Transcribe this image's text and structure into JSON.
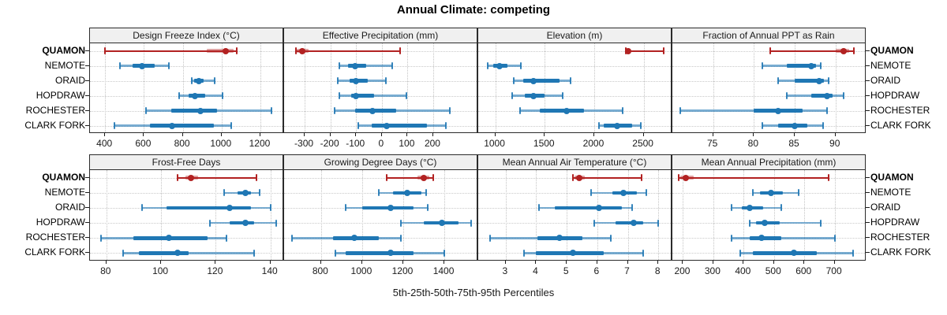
{
  "title": "Annual Climate: competing",
  "caption": "5th-25th-50th-75th-95th Percentiles",
  "percentiles": [
    "5th",
    "25th",
    "50th",
    "75th",
    "95th"
  ],
  "stations": [
    "QUAMON",
    "NEMOTE",
    "ORAID",
    "HOPDRAW",
    "ROCHESTER",
    "CLARK FORK"
  ],
  "highlight_station": "QUAMON",
  "colors": {
    "highlight": "#b22222",
    "normal": "#1f77b4",
    "grid": "#c4c4c4",
    "panel_header_bg": "#f0f0f0",
    "border": "#2b2b2b"
  },
  "chart_data": [
    {
      "type": "interval-dot",
      "title": "Design Freeze Index (°C)",
      "row": 0,
      "col": 0,
      "xlim": [
        322,
        1322
      ],
      "ticks": [
        400,
        600,
        800,
        1000,
        1200
      ],
      "values": [
        [
          400,
          925,
          1020,
          1060,
          1080
        ],
        [
          475,
          540,
          590,
          655,
          730
        ],
        [
          845,
          858,
          882,
          908,
          965
        ],
        [
          780,
          830,
          862,
          915,
          1005
        ],
        [
          612,
          740,
          890,
          975,
          1255
        ],
        [
          450,
          630,
          745,
          960,
          1050
        ]
      ]
    },
    {
      "type": "interval-dot",
      "title": "Effective Precipitation (mm)",
      "row": 0,
      "col": 1,
      "xlim": [
        -380,
        375
      ],
      "ticks": [
        -300,
        -200,
        -100,
        0,
        100,
        200
      ],
      "values": [
        [
          -335,
          -330,
          -310,
          -285,
          70
        ],
        [
          -165,
          -130,
          -105,
          -60,
          40
        ],
        [
          -170,
          -125,
          -100,
          -55,
          15
        ],
        [
          -165,
          -120,
          -100,
          -30,
          95
        ],
        [
          -185,
          -105,
          -35,
          55,
          265
        ],
        [
          -90,
          -40,
          20,
          175,
          250
        ]
      ]
    },
    {
      "type": "interval-dot",
      "title": "Elevation (m)",
      "row": 0,
      "col": 2,
      "xlim": [
        828,
        2790
      ],
      "ticks": [
        1000,
        1500,
        2000,
        2500
      ],
      "values": [
        [
          2320,
          2330,
          2345,
          2365,
          2700
        ],
        [
          920,
          980,
          1040,
          1120,
          1260
        ],
        [
          1190,
          1280,
          1390,
          1650,
          1760
        ],
        [
          1170,
          1300,
          1390,
          1500,
          1680
        ],
        [
          1250,
          1450,
          1720,
          1900,
          2290
        ],
        [
          2050,
          2100,
          2230,
          2380,
          2470
        ]
      ]
    },
    {
      "type": "interval-dot",
      "title": "Fraction of Annual PPT as Rain",
      "row": 0,
      "col": 3,
      "xlim": [
        70,
        93.8
      ],
      "ticks": [
        75,
        80,
        85,
        90
      ],
      "values": [
        [
          82,
          90,
          91,
          91.7,
          92.3
        ],
        [
          81,
          84,
          87,
          87.6,
          88.2
        ],
        [
          83,
          85,
          88,
          88.6,
          89.2
        ],
        [
          84,
          87,
          89,
          89.6,
          91
        ],
        [
          71,
          80,
          83,
          86,
          89
        ],
        [
          81,
          83,
          85,
          86.5,
          88.5
        ]
      ]
    },
    {
      "type": "interval-dot",
      "title": "Frost-Free Days",
      "row": 1,
      "col": 0,
      "xlim": [
        74,
        145
      ],
      "ticks": [
        80,
        100,
        120,
        140
      ],
      "values": [
        [
          106,
          109,
          111,
          113.5,
          135
        ],
        [
          123,
          128,
          131,
          133,
          136
        ],
        [
          93,
          102,
          125,
          133,
          140
        ],
        [
          118,
          125,
          131,
          134,
          142
        ],
        [
          78,
          90,
          103,
          117,
          124
        ],
        [
          86,
          92,
          106,
          110,
          134
        ]
      ]
    },
    {
      "type": "interval-dot",
      "title": "Growing Degree Days (°C)",
      "row": 1,
      "col": 1,
      "xlim": [
        620,
        1565
      ],
      "ticks": [
        800,
        1000,
        1200,
        1400
      ],
      "values": [
        [
          1120,
          1270,
          1300,
          1325,
          1345
        ],
        [
          1080,
          1150,
          1220,
          1290,
          1310
        ],
        [
          920,
          1000,
          1140,
          1250,
          1320
        ],
        [
          1190,
          1300,
          1390,
          1470,
          1530
        ],
        [
          660,
          860,
          960,
          1080,
          1190
        ],
        [
          870,
          920,
          1140,
          1250,
          1400
        ]
      ]
    },
    {
      "type": "interval-dot",
      "title": "Mean Annual Air Temperature (°C)",
      "row": 1,
      "col": 2,
      "xlim": [
        2.1,
        8.46
      ],
      "ticks": [
        3,
        4,
        5,
        6,
        7,
        8
      ],
      "values": [
        [
          5.2,
          5.25,
          5.4,
          5.6,
          7.45
        ],
        [
          5.8,
          6.5,
          6.85,
          7.3,
          7.6
        ],
        [
          4.1,
          4.6,
          6.05,
          6.8,
          7.15
        ],
        [
          5.9,
          6.6,
          7.2,
          7.5,
          8.0
        ],
        [
          2.5,
          4.05,
          4.75,
          5.5,
          6.45
        ],
        [
          3.6,
          4.0,
          5.2,
          6.2,
          7.5
        ]
      ]
    },
    {
      "type": "interval-dot",
      "title": "Mean Annual Precipitation (mm)",
      "row": 1,
      "col": 3,
      "xlim": [
        165,
        805
      ],
      "ticks": [
        200,
        300,
        400,
        500,
        600,
        700
      ],
      "values": [
        [
          185,
          190,
          210,
          235,
          680
        ],
        [
          430,
          455,
          490,
          530,
          580
        ],
        [
          360,
          395,
          420,
          465,
          525
        ],
        [
          420,
          440,
          470,
          520,
          655
        ],
        [
          360,
          420,
          460,
          525,
          700
        ],
        [
          390,
          430,
          565,
          640,
          760
        ]
      ]
    }
  ]
}
